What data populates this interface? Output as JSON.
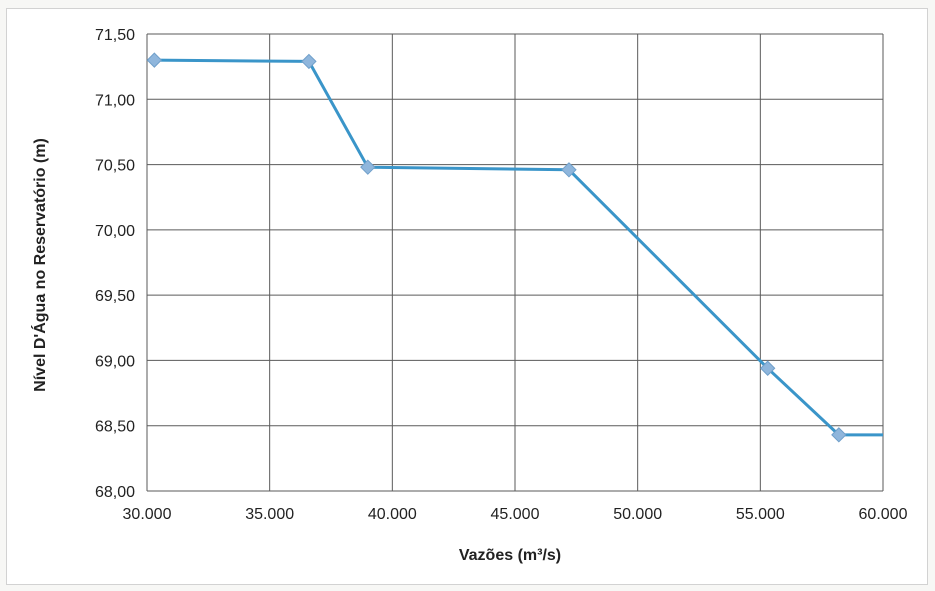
{
  "chart_data": {
    "type": "line",
    "title": "",
    "xlabel": "Vazões (m³/s)",
    "ylabel": "Nível D'Água no Reservatório (m)",
    "xlim": [
      30000,
      60000
    ],
    "ylim": [
      68.0,
      71.5
    ],
    "x_ticks": [
      "30.000",
      "35.000",
      "40.000",
      "45.000",
      "50.000",
      "55.000",
      "60.000"
    ],
    "y_ticks": [
      "71,50",
      "71,00",
      "70,50",
      "70,00",
      "69,50",
      "69,00",
      "68,50",
      "68,00"
    ],
    "grid": true,
    "legend": "none",
    "series": [
      {
        "color": "#3a95c9",
        "marker_color": "#8fb6dc",
        "points": [
          {
            "x": 30300,
            "y": 71.3
          },
          {
            "x": 36600,
            "y": 71.29
          },
          {
            "x": 39000,
            "y": 70.48
          },
          {
            "x": 47200,
            "y": 70.46
          },
          {
            "x": 55300,
            "y": 68.94
          },
          {
            "x": 58200,
            "y": 68.43
          },
          {
            "x": 60000,
            "y": 68.43,
            "marker": false
          }
        ]
      }
    ]
  }
}
